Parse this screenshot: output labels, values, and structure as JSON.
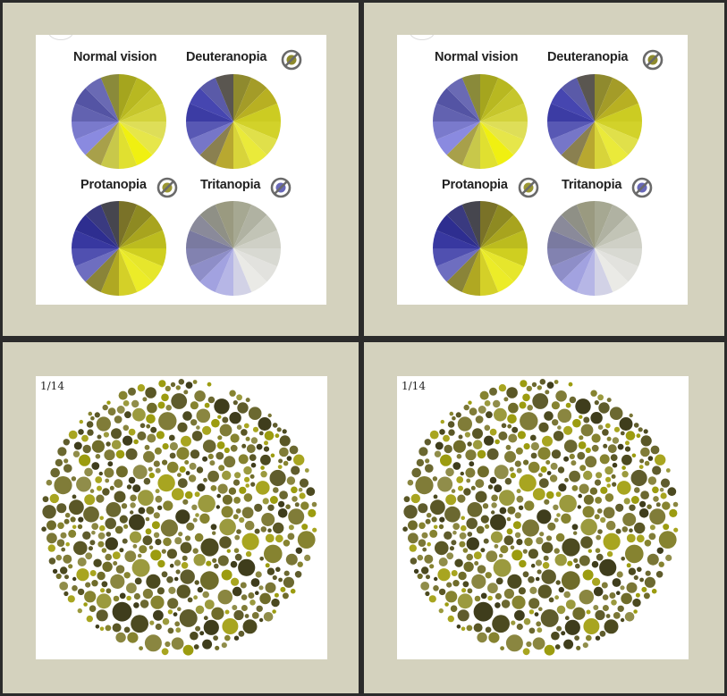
{
  "colors": {
    "background_frame": "#2b2b2b",
    "panel": "#d4d2be",
    "card": "#ffffff"
  },
  "wheels": {
    "normal_label": "Normal vision",
    "deuteranopia_label": "Deuteranopia",
    "protanopia_label": "Protanopia",
    "tritanopia_label": "Tritanopia",
    "palettes": {
      "normal": [
        "#a5a51e",
        "#b8b821",
        "#c6c62c",
        "#d3d33c",
        "#dede58",
        "#e6e64a",
        "#f0f011",
        "#e0e030",
        "#c8c84a",
        "#a8a04a",
        "#8a8ae0",
        "#7a7acc",
        "#6262b0",
        "#5454a4",
        "#6a6ab4",
        "#8a8a3a"
      ],
      "deuteranopia": [
        "#8f8a2e",
        "#a49c28",
        "#b8b022",
        "#cccc22",
        "#d2d22a",
        "#e0e04a",
        "#eaea3a",
        "#d8d43a",
        "#b8a830",
        "#8a8050",
        "#7676c8",
        "#5858b4",
        "#3c3ca4",
        "#4646b0",
        "#5a5aa8",
        "#5a5650"
      ],
      "protanopia": [
        "#7a7228",
        "#8e8a22",
        "#a8a41e",
        "#bcbc1e",
        "#cfcf20",
        "#e6e62c",
        "#ecec28",
        "#d4d028",
        "#b0a822",
        "#8a8438",
        "#6e6ec0",
        "#5050b0",
        "#3838a0",
        "#2e2e90",
        "#3a3a80",
        "#46464e"
      ],
      "tritanopia": [
        "#a6a892",
        "#b0b2a2",
        "#c2c4b6",
        "#cfd0c6",
        "#d8d9d2",
        "#e2e2de",
        "#eaeae6",
        "#d2d2e6",
        "#b6b6e6",
        "#a2a2e0",
        "#8e8ec8",
        "#8282b0",
        "#7a7aa0",
        "#8a8a9a",
        "#8f9086",
        "#9a9a80"
      ]
    },
    "badge_colors": {
      "deuteranopia": "#8e8a2c",
      "protanopia": "#9a9632",
      "tritanopia": "#6868b8"
    }
  },
  "plate": {
    "counter": "1/14",
    "palette": [
      "#6b6830",
      "#7a7636",
      "#5a5726",
      "#8a8640",
      "#4c4a20",
      "#908d4a",
      "#6f6c2a",
      "#807c38",
      "#5f5c2c",
      "#9b9a3e",
      "#3f3d1c",
      "#9c9c10",
      "#a8a520",
      "#868330"
    ]
  }
}
